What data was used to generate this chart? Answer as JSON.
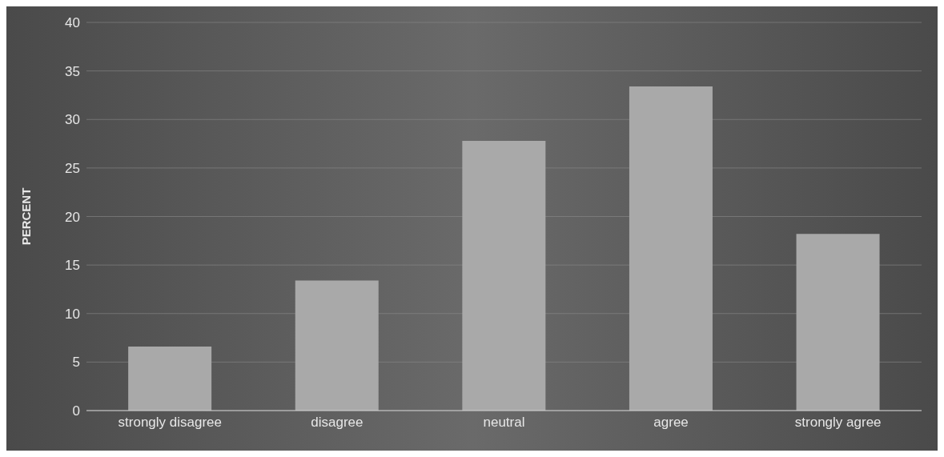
{
  "chart_data": {
    "type": "bar",
    "ylabel": "PERCENT",
    "categories": [
      "strongly disagree",
      "disagree",
      "neutral",
      "agree",
      "strongly agree"
    ],
    "values": [
      6.6,
      13.4,
      27.8,
      33.4,
      18.2
    ],
    "color": "#a9a9a9",
    "ylim": [
      0,
      40
    ],
    "yticks": [
      0,
      5,
      10,
      15,
      20,
      25,
      30,
      35,
      40
    ],
    "grid": "y"
  }
}
